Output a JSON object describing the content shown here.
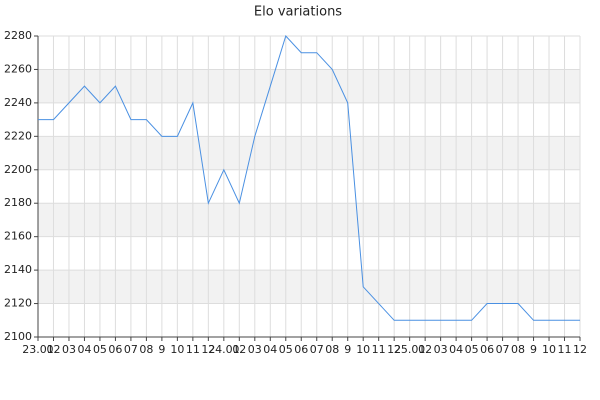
{
  "chart_data": {
    "type": "line",
    "title": "Elo variations",
    "categories": [
      "23.01",
      "02",
      "03",
      "04",
      "05",
      "06",
      "07",
      "08",
      "9",
      "10",
      "11",
      "12",
      "24.01",
      "02",
      "03",
      "04",
      "05",
      "06",
      "07",
      "08",
      "9",
      "10",
      "11",
      "12",
      "25.01",
      "02",
      "03",
      "04",
      "05",
      "06",
      "07",
      "08",
      "9",
      "10",
      "11",
      "12"
    ],
    "values": [
      2230,
      2230,
      2240,
      2250,
      2240,
      2250,
      2230,
      2230,
      2220,
      2220,
      2240,
      2180,
      2200,
      2180,
      2220,
      2250,
      2280,
      2270,
      2270,
      2260,
      2240,
      2130,
      2120,
      2110,
      2110,
      2110,
      2110,
      2110,
      2110,
      2120,
      2120,
      2120,
      2110,
      2110,
      2110,
      2110
    ],
    "color": "#4a90e2",
    "ylim": [
      2100,
      2280
    ],
    "yticks": [
      2100,
      2120,
      2140,
      2160,
      2180,
      2200,
      2220,
      2240,
      2260,
      2280
    ],
    "grid": true,
    "alternate_bands": true
  }
}
